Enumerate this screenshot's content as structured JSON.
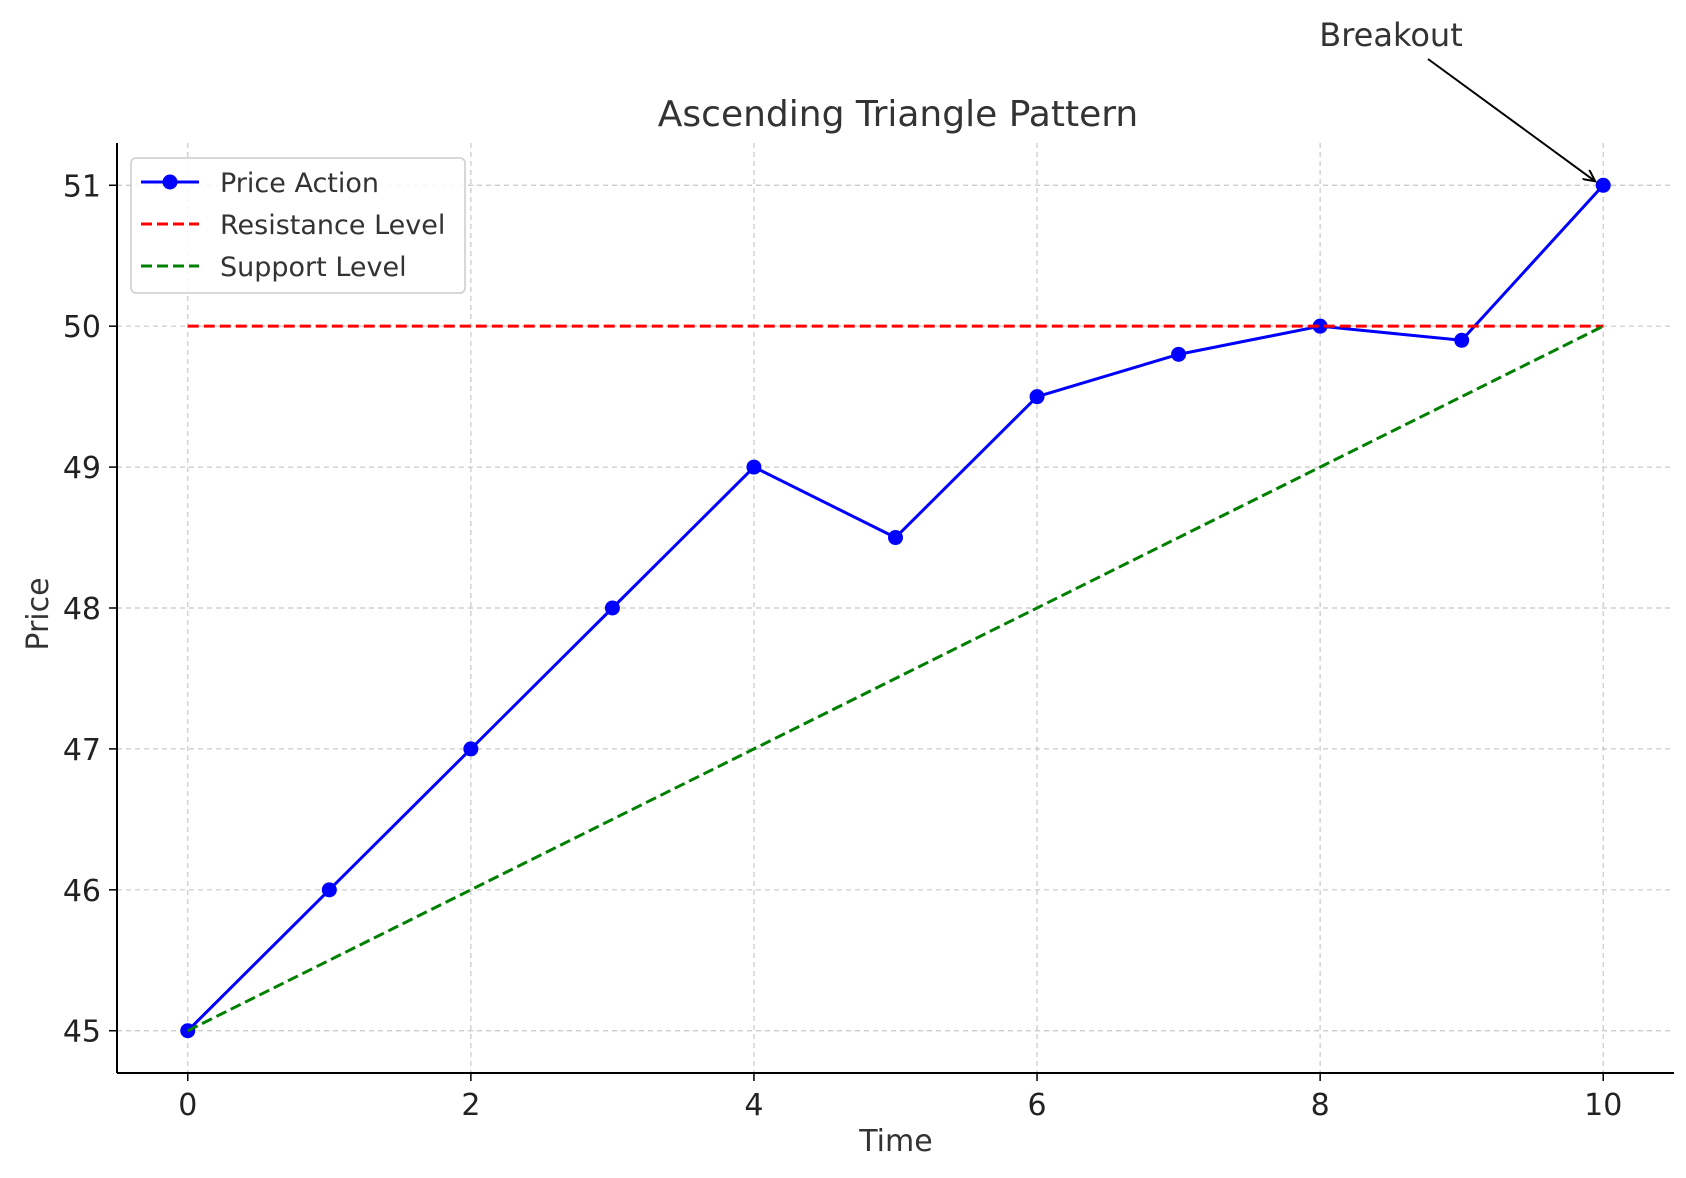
{
  "chart_data": {
    "type": "line",
    "title": "Ascending Triangle Pattern",
    "xlabel": "Time",
    "ylabel": "Price",
    "xlim": [
      -0.5,
      10.5
    ],
    "ylim": [
      44.7,
      51.3
    ],
    "xticks": [
      0,
      2,
      4,
      6,
      8,
      10
    ],
    "yticks": [
      45,
      46,
      47,
      48,
      49,
      50,
      51
    ],
    "grid": true,
    "legend_position": "top-left",
    "series": [
      {
        "name": "Price Action",
        "color": "#0000ff",
        "style": "solid",
        "marker": "circle",
        "x": [
          0,
          1,
          2,
          3,
          4,
          5,
          6,
          7,
          8,
          9,
          10
        ],
        "y": [
          45,
          46,
          47,
          48,
          49,
          48.5,
          49.5,
          49.8,
          50,
          49.9,
          51
        ]
      },
      {
        "name": "Resistance Level",
        "color": "#ff0000",
        "style": "dashed",
        "marker": "none",
        "x": [
          0,
          10
        ],
        "y": [
          50,
          50
        ]
      },
      {
        "name": "Support Level",
        "color": "#008000",
        "style": "dashed",
        "marker": "none",
        "x": [
          0,
          10
        ],
        "y": [
          45,
          50
        ]
      }
    ],
    "annotations": [
      {
        "text": "Breakout",
        "x": 10,
        "y": 51,
        "arrow": true
      }
    ]
  }
}
